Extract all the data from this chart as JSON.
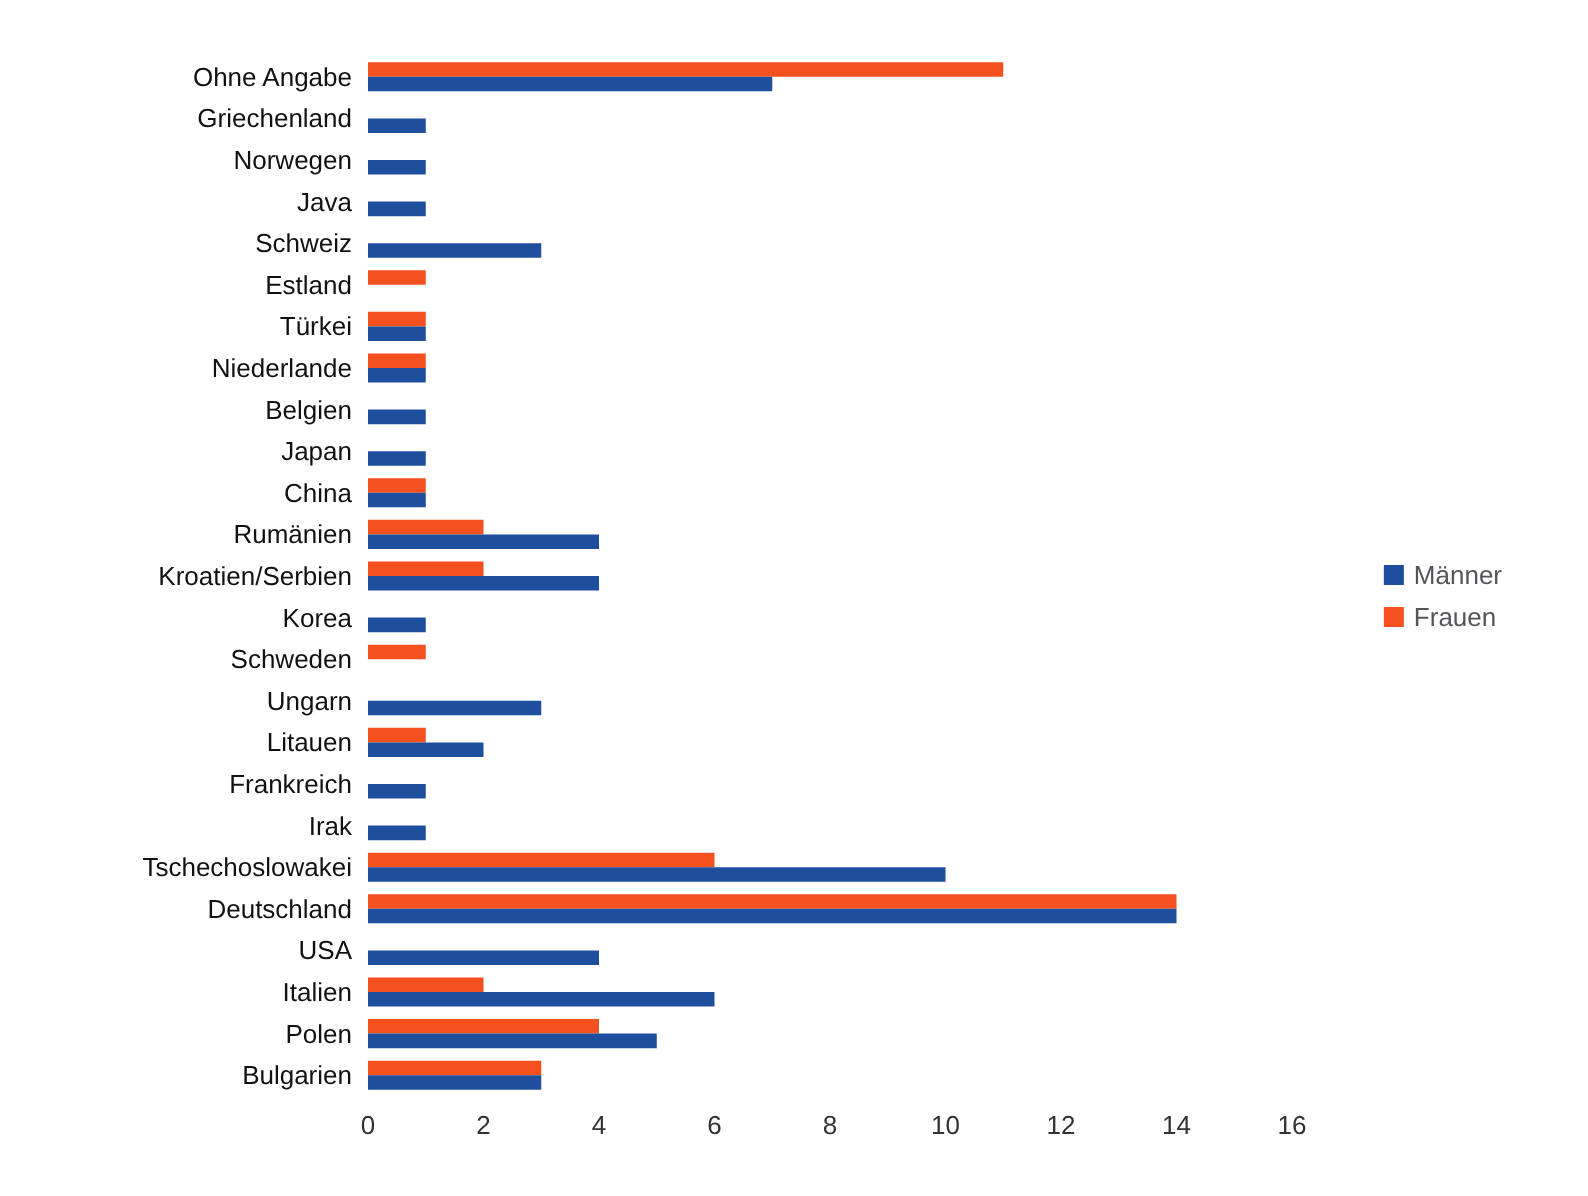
{
  "chart_data": {
    "type": "bar",
    "orientation": "horizontal",
    "categories": [
      "Ohne Angabe",
      "Griechenland",
      "Norwegen",
      "Java",
      "Schweiz",
      "Estland",
      "Türkei",
      "Niederlande",
      "Belgien",
      "Japan",
      "China",
      "Rumänien",
      "Kroatien/Serbien",
      "Korea",
      "Schweden",
      "Ungarn",
      "Litauen",
      "Frankreich",
      "Irak",
      "Tschechoslowakei",
      "Deutschland",
      "USA",
      "Italien",
      "Polen",
      "Bulgarien"
    ],
    "series": [
      {
        "name": "Männer",
        "color": "#1f4e9c",
        "values": [
          7,
          1,
          1,
          1,
          3,
          0,
          1,
          1,
          1,
          1,
          1,
          4,
          4,
          1,
          0,
          3,
          2,
          1,
          1,
          10,
          14,
          4,
          6,
          5,
          3
        ]
      },
      {
        "name": "Frauen",
        "color": "#f4511e",
        "values": [
          11,
          0,
          0,
          0,
          0,
          1,
          1,
          1,
          0,
          0,
          1,
          2,
          2,
          0,
          1,
          0,
          1,
          0,
          0,
          6,
          14,
          0,
          2,
          4,
          3
        ]
      }
    ],
    "xlim": [
      0,
      16
    ],
    "xticks": [
      0,
      2,
      4,
      6,
      8,
      10,
      12,
      14,
      16
    ],
    "grid": false,
    "legend": "right"
  }
}
